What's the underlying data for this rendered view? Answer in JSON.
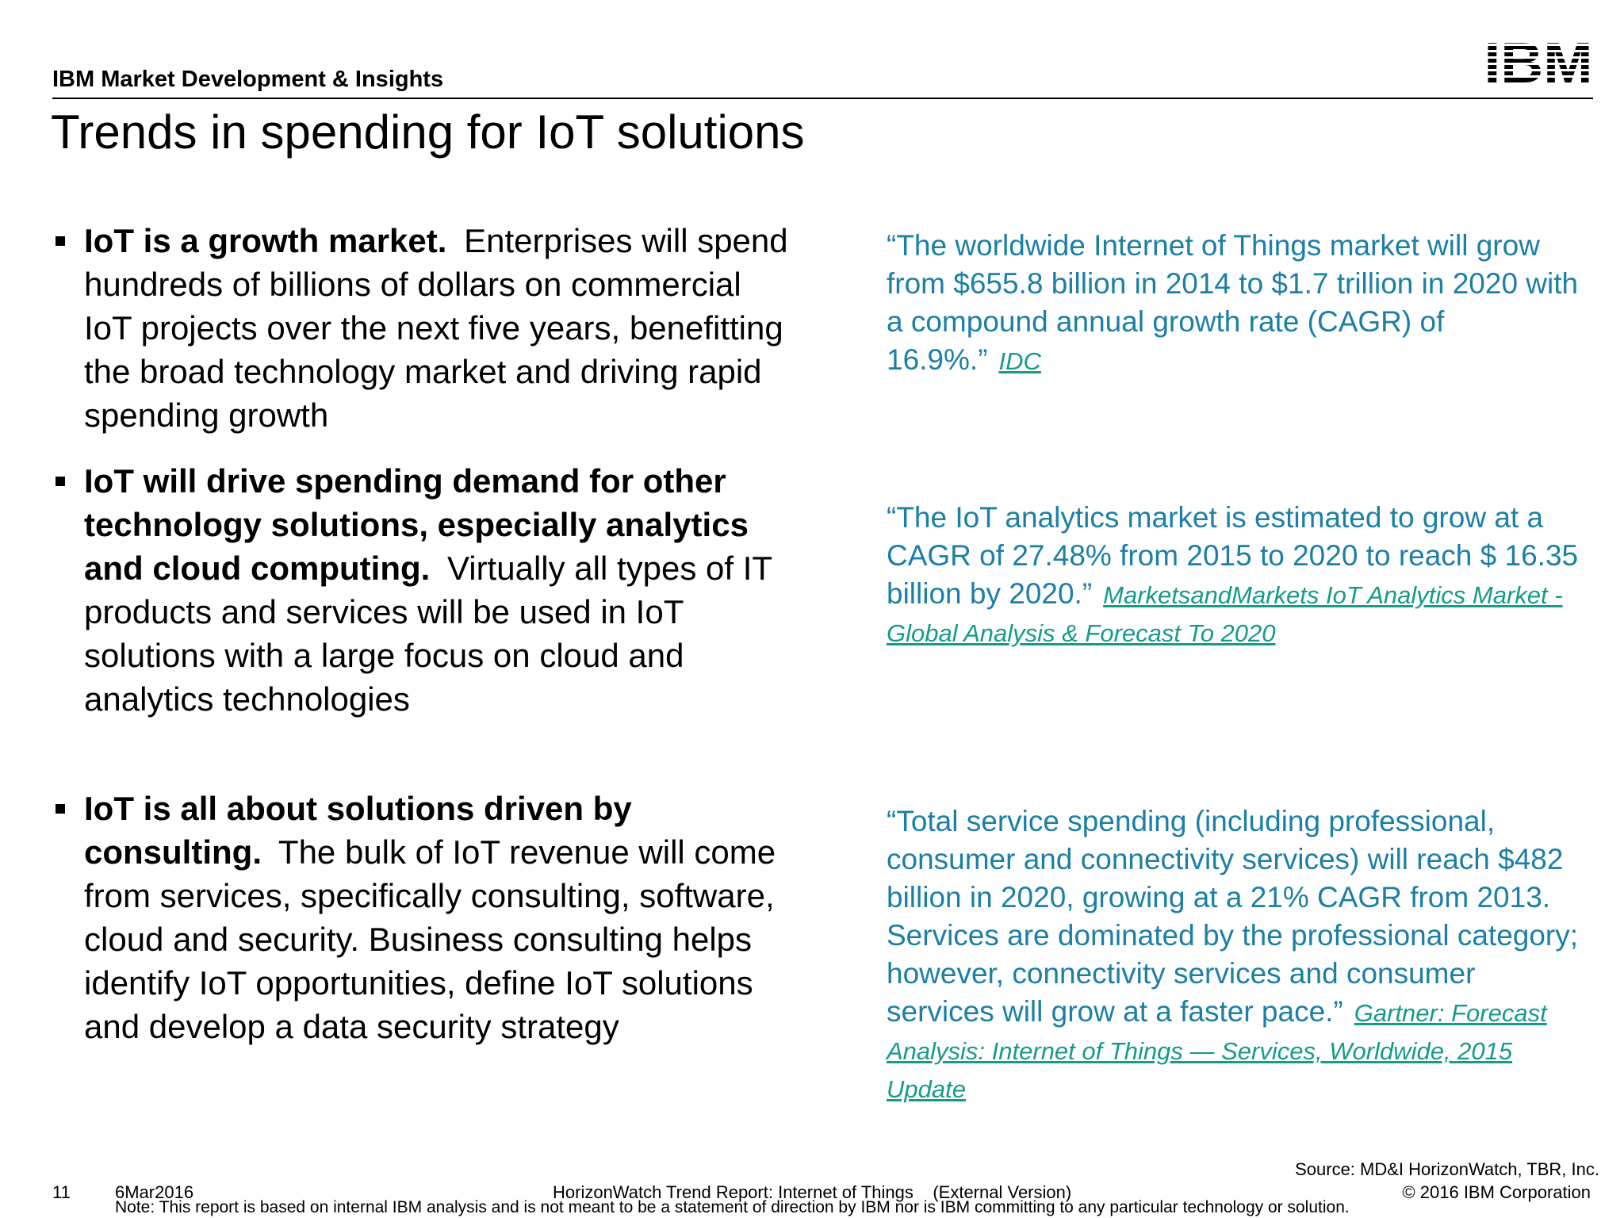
{
  "header": {
    "org": "IBM Market Development & Insights",
    "logo": "IBM",
    "title": "Trends in spending for IoT solutions"
  },
  "bullets": [
    {
      "lead": "IoT is a growth market.",
      "body": "Enterprises will spend hundreds of billions of dollars on commercial IoT projects over the next five years, benefitting the broad technology market and driving rapid spending growth"
    },
    {
      "lead": "IoT will drive spending demand for other technology solutions, especially analytics and cloud computing.",
      "body": "Virtually all types of IT products and services will be used in IoT solutions with a large focus on cloud and analytics technologies"
    },
    {
      "lead": "IoT is all about solutions driven by consulting.",
      "body": "The bulk of IoT revenue will come from services, specifically consulting, software, cloud and security. Business consulting helps identify IoT opportunities, define IoT solutions and develop a data security strategy"
    }
  ],
  "quotes": [
    {
      "text": "“The worldwide Internet of Things market will grow from $655.8 billion in 2014 to $1.7 trillion in 2020 with a compound annual growth rate (CAGR) of 16.9%.”",
      "source": "IDC"
    },
    {
      "text": "“The IoT analytics market is estimated to grow at a CAGR of 27.48% from 2015 to 2020 to reach $ 16.35 billion by 2020.”",
      "source": "MarketsandMarkets IoT Analytics Market - Global Analysis & Forecast To 2020"
    },
    {
      "text": "“Total service spending (including professional, consumer and connectivity services) will reach $482 billion in 2020, growing at a 21% CAGR from 2013. Services are dominated by the professional category; however, connectivity services and consumer services will grow at a faster pace.”",
      "source": "Gartner:  Forecast Analysis: Internet of Things — Services, Worldwide, 2015 Update"
    }
  ],
  "footer": {
    "source": "Source: MD&I HorizonWatch, TBR, Inc.",
    "page": "11",
    "date": "6Mar2016",
    "report": "HorizonWatch Trend Report: Internet of Things    (External Version)",
    "copyright": "© 2016 IBM Corporation",
    "note": "Note: This report is based on internal IBM analysis and is not meant to be a statement of direction by IBM nor is IBM committing to any particular technology or solution."
  }
}
